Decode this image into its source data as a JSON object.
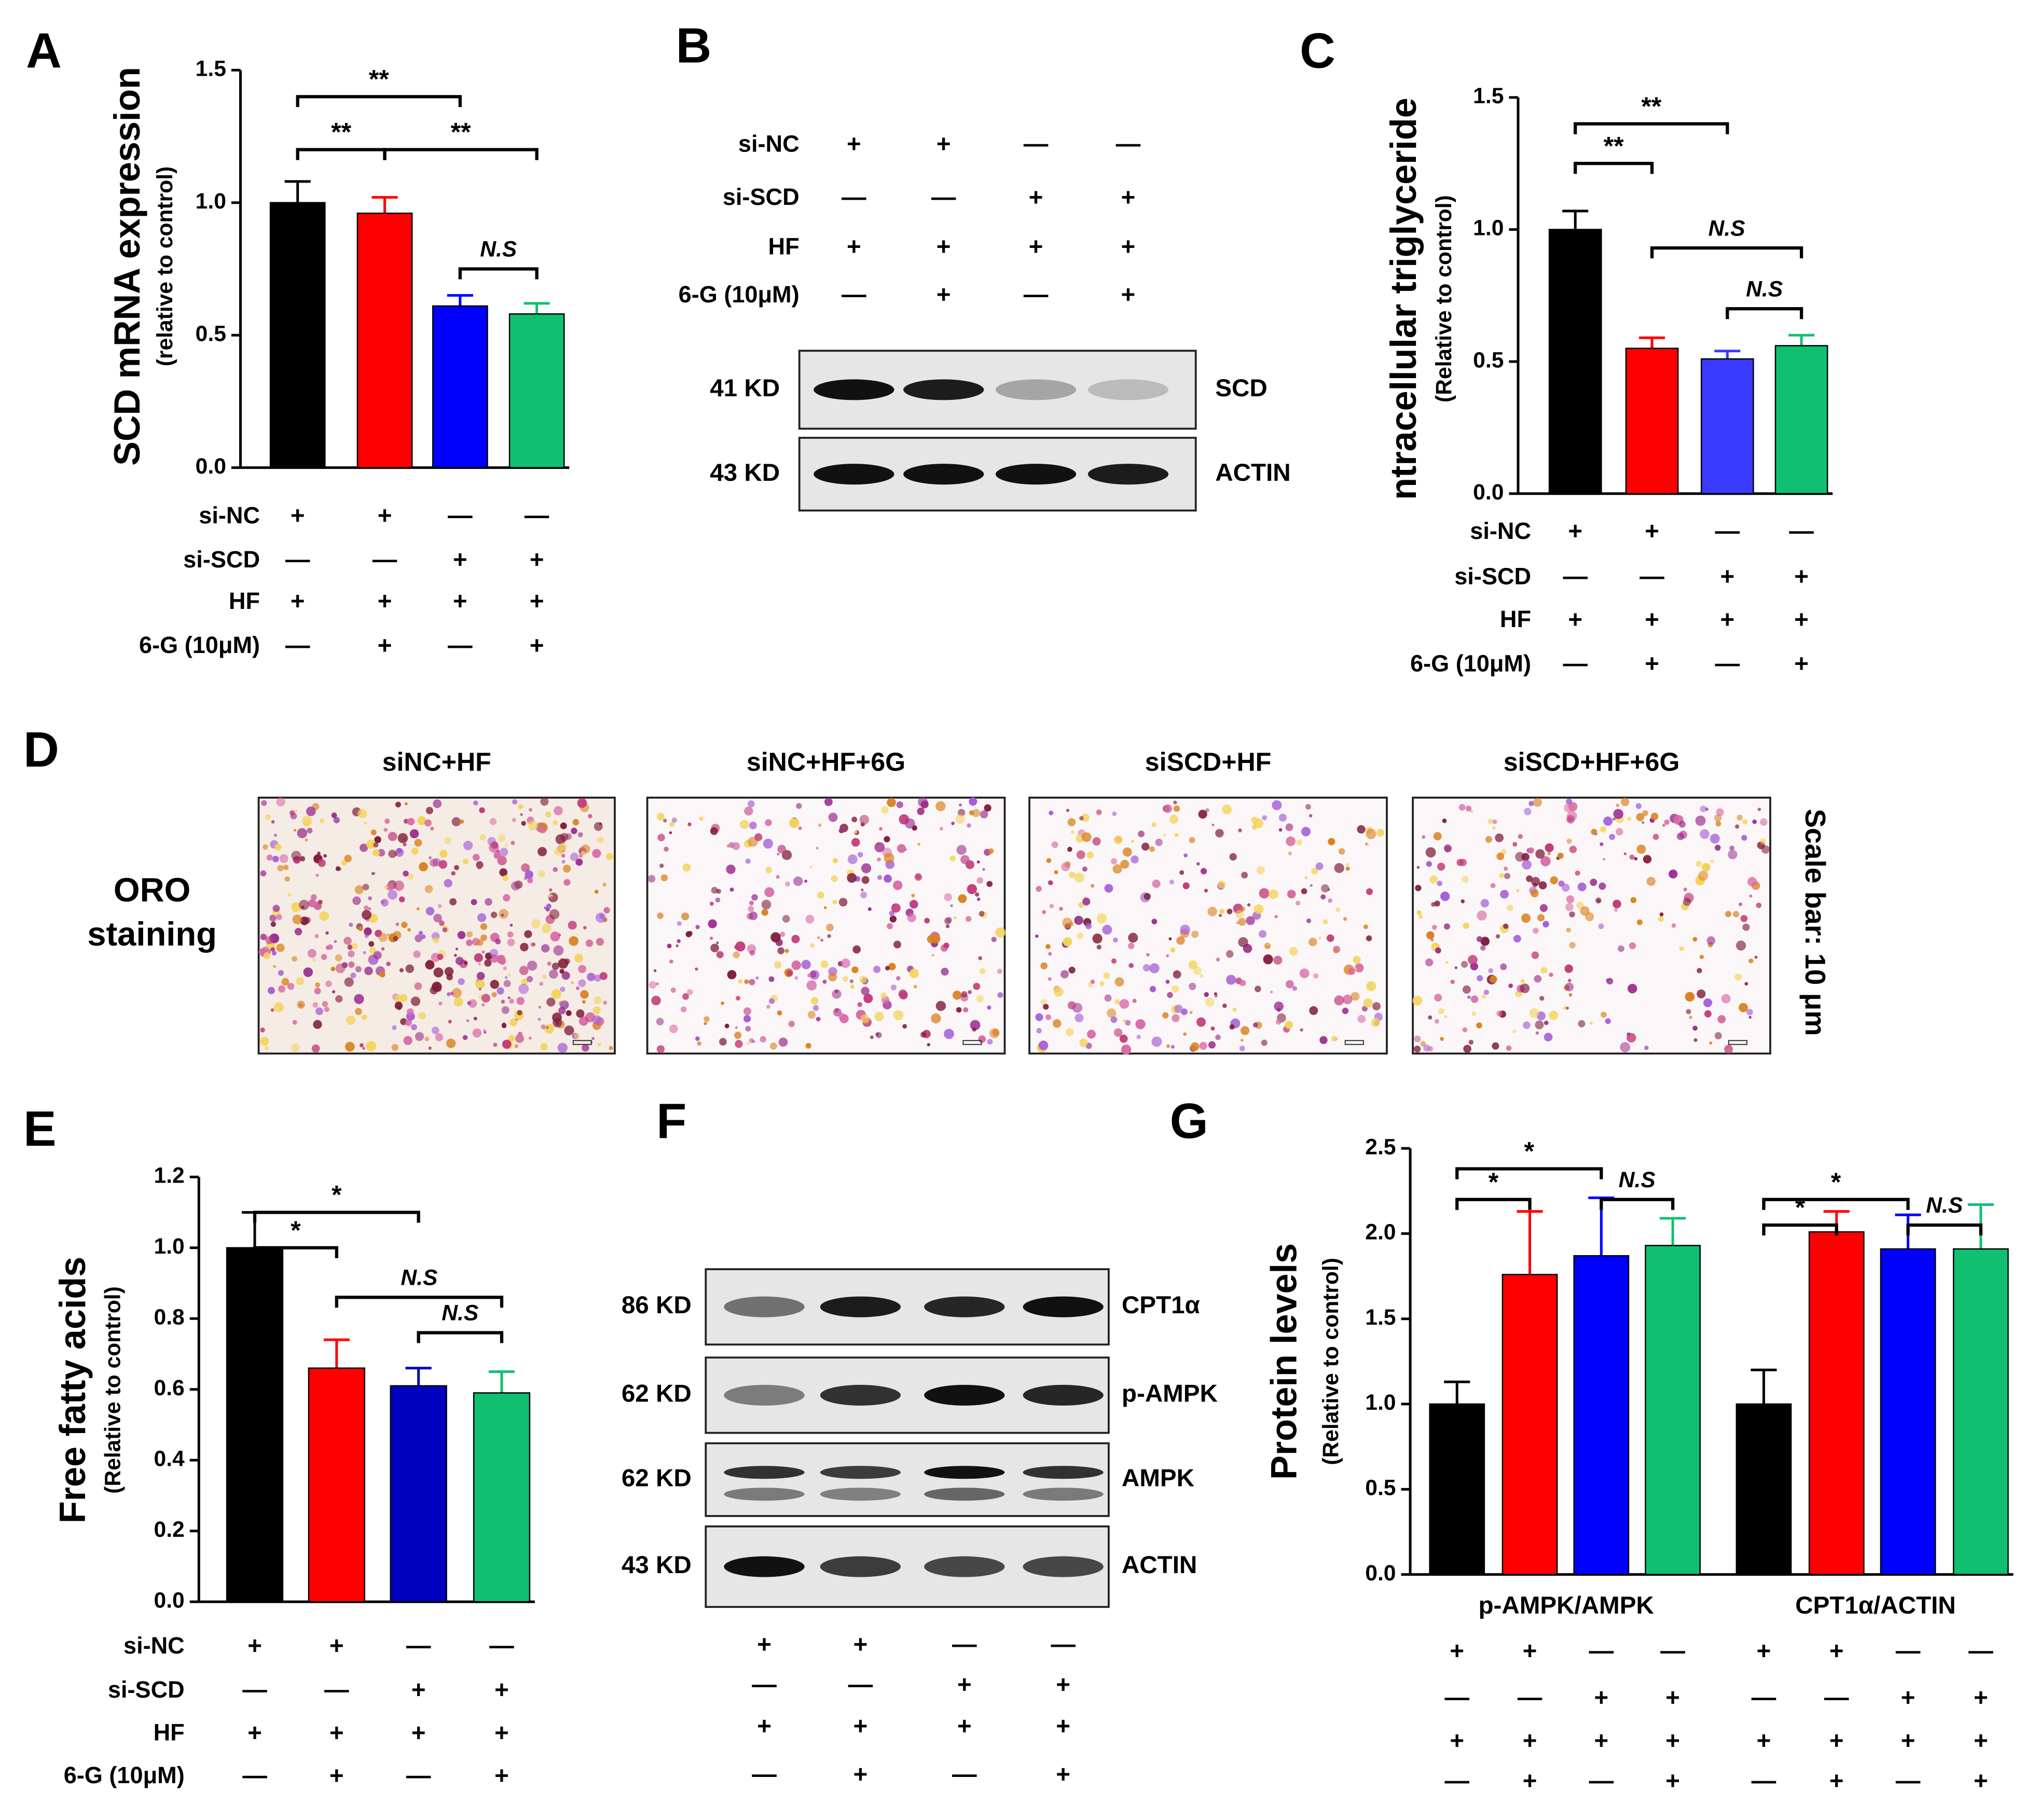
{
  "chart_data": [
    {
      "type": "bar",
      "panel": "A",
      "y_label": "SCD mRNA expression",
      "y_sublabel": "(relative to control)",
      "categories": [
        null,
        null,
        null,
        null
      ],
      "values": [
        1.0,
        0.96,
        0.61,
        0.58
      ],
      "errors": [
        0.08,
        0.06,
        0.04,
        0.04
      ],
      "colors": [
        "#000000",
        "#ff0000",
        "#0000ff",
        "#10c070"
      ],
      "ylim": [
        0,
        1.5
      ],
      "yticks": [
        {
          "value": 0,
          "label": "0.0"
        },
        {
          "value": 0.5,
          "label": "0.5"
        },
        {
          "value": 1,
          "label": "1.0"
        },
        {
          "value": 1.5,
          "label": "1.5"
        }
      ],
      "annotations": [
        {
          "label": "**",
          "bars": [
            0,
            2
          ],
          "y": 1.4
        },
        {
          "label": "**",
          "bars": [
            0,
            1
          ],
          "y": 1.2
        },
        {
          "label": "**",
          "bars": [
            1,
            3
          ],
          "y": 1.2
        },
        {
          "label": "N.S",
          "bars": [
            2,
            3
          ],
          "y": 0.75
        }
      ],
      "conditions": [
        {
          "label": "si-NC",
          "signs": [
            "+",
            "+",
            "—",
            "—"
          ]
        },
        {
          "label": "si-SCD",
          "signs": [
            "—",
            "—",
            "+",
            "+"
          ]
        },
        {
          "label": "HF",
          "signs": [
            "+",
            "+",
            "+",
            "+"
          ]
        },
        {
          "label": "6-G (10μM)",
          "signs": [
            "—",
            "+",
            "—",
            "+"
          ]
        }
      ]
    },
    {
      "type": "bar",
      "panel": "C",
      "y_label": "ntracellular triglyceride",
      "y_sublabel": "(Relative to control)",
      "categories": [
        null,
        null,
        null,
        null
      ],
      "values": [
        1.0,
        0.55,
        0.51,
        0.56
      ],
      "errors": [
        0.07,
        0.04,
        0.03,
        0.04
      ],
      "colors": [
        "#000000",
        "#ff0000",
        "#3a3aff",
        "#10c070"
      ],
      "ylim": [
        0,
        1.5
      ],
      "yticks": [
        {
          "value": 0,
          "label": "0.0"
        },
        {
          "value": 0.5,
          "label": "0.5"
        },
        {
          "value": 1,
          "label": "1.0"
        },
        {
          "value": 1.5,
          "label": "1.5"
        }
      ],
      "annotations": [
        {
          "label": "**",
          "bars": [
            0,
            2
          ],
          "y": 1.4
        },
        {
          "label": "**",
          "bars": [
            0,
            1
          ],
          "y": 1.25
        },
        {
          "label": "N.S",
          "bars": [
            1,
            3
          ],
          "y": 0.93
        },
        {
          "label": "N.S",
          "bars": [
            2,
            3
          ],
          "y": 0.7
        }
      ],
      "conditions": [
        {
          "label": "si-NC",
          "signs": [
            "+",
            "+",
            "—",
            "—"
          ]
        },
        {
          "label": "si-SCD",
          "signs": [
            "—",
            "—",
            "+",
            "+"
          ]
        },
        {
          "label": "HF",
          "signs": [
            "+",
            "+",
            "+",
            "+"
          ]
        },
        {
          "label": "6-G (10μM)",
          "signs": [
            "—",
            "+",
            "—",
            "+"
          ]
        }
      ]
    },
    {
      "type": "bar",
      "panel": "E",
      "y_label": "Free fatty acids",
      "y_sublabel": "(Relative to control)",
      "categories": [
        null,
        null,
        null,
        null
      ],
      "values": [
        1.0,
        0.66,
        0.61,
        0.59
      ],
      "errors": [
        0.1,
        0.08,
        0.05,
        0.06
      ],
      "colors": [
        "#000000",
        "#ff0000",
        "#0000c0",
        "#10c070"
      ],
      "ylim": [
        0,
        1.2
      ],
      "yticks": [
        {
          "value": 0,
          "label": "0.0"
        },
        {
          "value": 0.2,
          "label": "0.2"
        },
        {
          "value": 0.4,
          "label": "0.4"
        },
        {
          "value": 0.6,
          "label": "0.6"
        },
        {
          "value": 0.8,
          "label": "0.8"
        },
        {
          "value": 1,
          "label": "1.0"
        },
        {
          "value": 1.2,
          "label": "1.2"
        }
      ],
      "annotations": [
        {
          "label": "*",
          "bars": [
            0,
            2
          ],
          "y": 1.1
        },
        {
          "label": "*",
          "bars": [
            0,
            1
          ],
          "y": 1.0
        },
        {
          "label": "N.S",
          "bars": [
            1,
            3
          ],
          "y": 0.86
        },
        {
          "label": "N.S",
          "bars": [
            2,
            3
          ],
          "y": 0.76
        }
      ],
      "conditions": [
        {
          "label": "si-NC",
          "signs": [
            "+",
            "+",
            "—",
            "—"
          ]
        },
        {
          "label": "si-SCD",
          "signs": [
            "—",
            "—",
            "+",
            "+"
          ]
        },
        {
          "label": "HF",
          "signs": [
            "+",
            "+",
            "+",
            "+"
          ]
        },
        {
          "label": "6-G (10μM)",
          "signs": [
            "—",
            "+",
            "—",
            "+"
          ]
        }
      ]
    },
    {
      "type": "grouped_bar",
      "panel": "G",
      "y_label": "Protein levels",
      "y_sublabel": "(Relative to control)",
      "categories": [
        "p-AMPK/AMPK",
        "CPT1α/ACTIN"
      ],
      "series": [
        {
          "color": "#000000",
          "values": [
            1.0,
            1.0
          ],
          "errors": [
            0.13,
            0.2
          ]
        },
        {
          "color": "#ff0000",
          "values": [
            1.76,
            2.01
          ],
          "errors": [
            0.37,
            0.12
          ]
        },
        {
          "color": "#0000ff",
          "values": [
            1.87,
            1.91
          ],
          "errors": [
            0.34,
            0.2
          ]
        },
        {
          "color": "#10c070",
          "values": [
            1.93,
            1.91
          ],
          "errors": [
            0.16,
            0.26
          ]
        }
      ],
      "ylim": [
        0,
        2.5
      ],
      "yticks": [
        {
          "value": 0,
          "label": "0.0"
        },
        {
          "value": 0.5,
          "label": "0.5"
        },
        {
          "value": 1,
          "label": "1.0"
        },
        {
          "value": 1.5,
          "label": "1.5"
        },
        {
          "value": 2,
          "label": "2.0"
        },
        {
          "value": 2.5,
          "label": "2.5"
        }
      ],
      "annotations": [
        {
          "label": "*",
          "bars": [
            0,
            2
          ],
          "y": 2.38
        },
        {
          "label": "*",
          "bars": [
            0,
            1
          ],
          "y": 2.2
        },
        {
          "label": "N.S",
          "bars": [
            2,
            3
          ],
          "y": 2.2
        },
        {
          "label": "*",
          "bars": [
            4,
            6
          ],
          "y": 2.2
        },
        {
          "label": "*",
          "bars": [
            4,
            5
          ],
          "y": 2.05
        },
        {
          "label": "N.S",
          "bars": [
            6,
            7
          ],
          "y": 2.05
        }
      ],
      "conditions": [
        {
          "signs": [
            "+",
            "+",
            "—",
            "—",
            "+",
            "+",
            "—",
            "—"
          ]
        },
        {
          "signs": [
            "—",
            "—",
            "+",
            "+",
            "—",
            "—",
            "+",
            "+"
          ]
        },
        {
          "signs": [
            "+",
            "+",
            "+",
            "+",
            "+",
            "+",
            "+",
            "+"
          ]
        },
        {
          "signs": [
            "—",
            "+",
            "—",
            "+",
            "—",
            "+",
            "—",
            "+"
          ]
        }
      ]
    }
  ],
  "blot_b": {
    "panel": "B",
    "conditions": [
      {
        "label": "si-NC",
        "signs": [
          "+",
          "+",
          "—",
          "—"
        ]
      },
      {
        "label": "si-SCD",
        "signs": [
          "—",
          "—",
          "+",
          "+"
        ]
      },
      {
        "label": "HF",
        "signs": [
          "+",
          "+",
          "+",
          "+"
        ]
      },
      {
        "label": "6-G (10μM)",
        "signs": [
          "—",
          "+",
          "—",
          "+"
        ]
      }
    ],
    "rows": [
      {
        "size": "41 KD",
        "protein": "SCD"
      },
      {
        "size": "43 KD",
        "protein": "ACTIN"
      }
    ]
  },
  "image_d": {
    "panel": "D",
    "columns": [
      "siNC+HF",
      "siNC+HF+6G",
      "siSCD+HF",
      "siSCD+HF+6G"
    ],
    "row_label": [
      "ORO",
      "staining"
    ],
    "scale_note": "Scale bar: 10 μm"
  },
  "blot_f": {
    "panel": "F",
    "rows": [
      {
        "size": "86 KD",
        "protein": "CPT1α"
      },
      {
        "size": "62 KD",
        "protein": "p-AMPK"
      },
      {
        "size": "62 KD",
        "protein": "AMPK"
      },
      {
        "size": "43 KD",
        "protein": "ACTIN"
      }
    ],
    "conditions": [
      {
        "signs": [
          "+",
          "+",
          "—",
          "—"
        ]
      },
      {
        "signs": [
          "—",
          "—",
          "+",
          "+"
        ]
      },
      {
        "signs": [
          "+",
          "+",
          "+",
          "+"
        ]
      },
      {
        "signs": [
          "—",
          "+",
          "—",
          "+"
        ]
      }
    ]
  }
}
